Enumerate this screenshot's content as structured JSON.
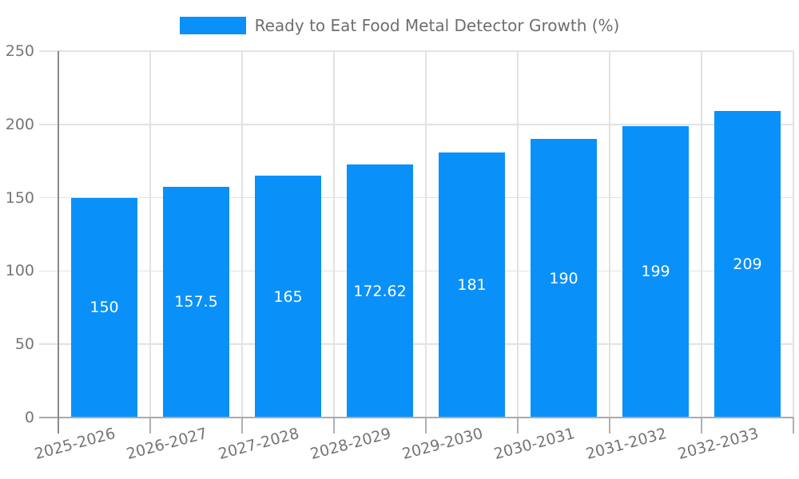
{
  "chart_data": {
    "type": "bar",
    "title": "",
    "legend_label": "Ready to Eat Food Metal Detector Growth (%)",
    "legend_position": "top-center",
    "categories": [
      "2025-2026",
      "2026-2027",
      "2027-2028",
      "2028-2029",
      "2029-2030",
      "2030-2031",
      "2031-2032",
      "2032-2033"
    ],
    "values": [
      150,
      157.5,
      165,
      172.62,
      181,
      190,
      199,
      209
    ],
    "value_labels": [
      "150",
      "157.5",
      "165",
      "172.62",
      "181",
      "190",
      "199",
      "209"
    ],
    "xlabel": "",
    "ylabel": "",
    "ylim": [
      0,
      250
    ],
    "yticks": [
      0,
      50,
      100,
      150,
      200,
      250
    ],
    "grid": "both",
    "colors": {
      "bar": "#0a90f9",
      "value_label": "#ffffff",
      "tick_label": "#757575",
      "legend_text": "#6e6e6e",
      "gridline": "#e2e2e2",
      "y_axis_line": "#8a8a8a",
      "x_axis_line": "#aaaaaa",
      "tick_mark": "#b0b0b0",
      "background": "#ffffff"
    }
  }
}
